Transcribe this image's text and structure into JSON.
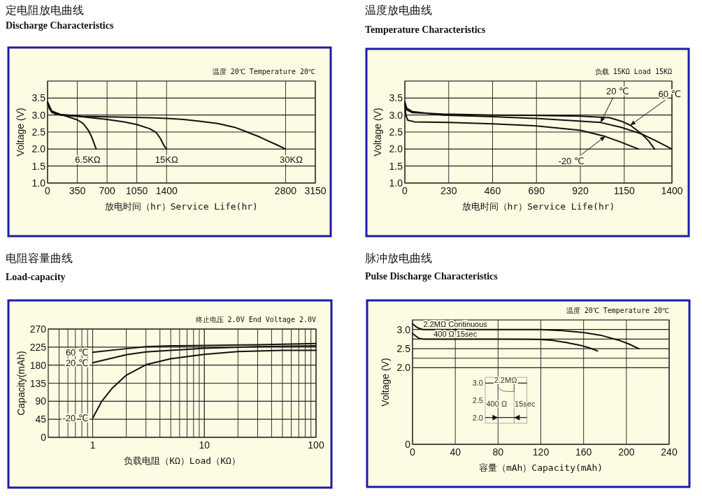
{
  "chart_data": [
    {
      "type": "line",
      "title": "定电阻放电曲线",
      "subtitle": "Discharge Characteristics",
      "xlabel": "放电时间（hr）Service Life(hr)",
      "ylabel": "Voltage (V)",
      "xlim": [
        0,
        3150
      ],
      "xticks": [
        0,
        350,
        700,
        1050,
        1400,
        2800,
        3150
      ],
      "ylim": [
        1,
        4
      ],
      "yticks": [
        {
          "value": 1,
          "label": "1.0"
        },
        1.5,
        {
          "value": 2,
          "label": "2.0"
        },
        2.5,
        {
          "value": 3,
          "label": "3.0"
        },
        3.5
      ],
      "grid": true,
      "annotations": [
        "温度 20℃  Temperature 20℃",
        {
          "text": "6.5KΩ",
          "x": 572,
          "y": 2.0
        },
        {
          "text": "15KΩ",
          "x": 1400,
          "y": 2.0
        },
        {
          "text": "30KΩ",
          "x": 2800,
          "y": 2.0
        }
      ],
      "series": [
        {
          "color": "#111111",
          "x": [
            0,
            20,
            50,
            100,
            200,
            300,
            350,
            420,
            480,
            520,
            550,
            572
          ],
          "values": [
            3.38,
            3.2,
            3.08,
            3.03,
            2.98,
            2.9,
            2.86,
            2.75,
            2.55,
            2.35,
            2.15,
            2.0
          ]
        },
        {
          "color": "#111111",
          "x": [
            0,
            50,
            150,
            400,
            700,
            900,
            1050,
            1200,
            1280,
            1330,
            1370,
            1400
          ],
          "values": [
            3.38,
            3.1,
            3.0,
            2.95,
            2.87,
            2.8,
            2.72,
            2.6,
            2.48,
            2.3,
            2.1,
            2.0
          ]
        },
        {
          "color": "#111111",
          "x": [
            0,
            50,
            150,
            400,
            800,
            1200,
            1400,
            1600,
            1786,
            2000,
            2200,
            2337,
            2500,
            2592,
            2700,
            2800
          ],
          "values": [
            3.38,
            3.12,
            3.02,
            2.96,
            2.94,
            2.92,
            2.9,
            2.87,
            2.82,
            2.75,
            2.64,
            2.51,
            2.35,
            2.24,
            2.12,
            2.0
          ]
        }
      ]
    },
    {
      "type": "line",
      "title": "温度放电曲线",
      "subtitle": "Temperature Characteristics",
      "xlabel": "放电时间（hr）Service Life(hr)",
      "ylabel": "Voltage (V)",
      "xlim": [
        0,
        1400
      ],
      "xticks": [
        0,
        230,
        460,
        690,
        920,
        1150,
        1400
      ],
      "ylim": [
        1,
        4
      ],
      "yticks": [
        {
          "value": 1,
          "label": "1.0"
        },
        1.5,
        {
          "value": 2,
          "label": "2.0"
        },
        2.5,
        {
          "value": 3,
          "label": "3.0"
        },
        3.5
      ],
      "grid": true,
      "annotations": [
        "负载 15KΩ Load 15KΩ",
        {
          "text": "20 ℃",
          "x": 1026,
          "y": 2.78
        },
        {
          "text": "60 ℃",
          "x": 1182,
          "y": 2.7
        },
        {
          "text": "-20 ℃",
          "x": 1050,
          "y": 2.37
        }
      ],
      "series": [
        {
          "color": "#111111",
          "x": [
            0,
            10,
            40,
            200,
            460,
            690,
            920,
            1074,
            1134,
            1182,
            1242,
            1279,
            1309
          ],
          "values": [
            3.38,
            3.15,
            3.07,
            3.03,
            3.0,
            2.99,
            2.97,
            2.92,
            2.82,
            2.7,
            2.44,
            2.23,
            2.0
          ]
        },
        {
          "color": "#111111",
          "x": [
            0,
            10,
            40,
            200,
            460,
            690,
            1026,
            1134,
            1242,
            1320,
            1400
          ],
          "values": [
            3.38,
            3.2,
            3.1,
            3.0,
            2.95,
            2.9,
            2.78,
            2.64,
            2.44,
            2.23,
            2.0
          ]
        },
        {
          "color": "#111111",
          "x": [
            0,
            5,
            15,
            50,
            230,
            460,
            690,
            920,
            1050,
            1134,
            1225
          ],
          "values": [
            3.38,
            3.0,
            2.85,
            2.8,
            2.78,
            2.74,
            2.68,
            2.55,
            2.37,
            2.2,
            2.0
          ]
        }
      ]
    },
    {
      "type": "line",
      "title": "电阻容量曲线",
      "subtitle": "Load-capacity",
      "xlabel": "负载电阻（KΩ）Load（KΩ）",
      "ylabel": "Capacity(mAh)",
      "log": "x",
      "xlim": [
        0.4,
        100
      ],
      "xticks": [
        1,
        10,
        100
      ],
      "ylim": [
        0,
        270
      ],
      "yticks": [
        0,
        45,
        90,
        135,
        180,
        225,
        270
      ],
      "grid": true,
      "annotations": [
        "终止电压 2.0V End Voltage 2.0V",
        {
          "text": "60 ℃",
          "x": 1,
          "y": 212
        },
        {
          "text": "20 ℃",
          "x": 1,
          "y": 186
        },
        {
          "text": "-20 ℃",
          "x": 1,
          "y": 48
        }
      ],
      "series": [
        {
          "color": "#111111",
          "x": [
            1,
            2,
            3,
            5,
            10,
            30,
            100
          ],
          "values": [
            212,
            221,
            226,
            228,
            229,
            231,
            234
          ]
        },
        {
          "color": "#111111",
          "x": [
            1,
            2,
            3,
            10,
            30,
            100
          ],
          "values": [
            186,
            206,
            213,
            222,
            226,
            228
          ]
        },
        {
          "color": "#111111",
          "x": [
            1,
            1.2,
            1.5,
            2,
            3,
            5,
            10,
            20,
            50,
            100
          ],
          "values": [
            48,
            89,
            123,
            155,
            181,
            196,
            207,
            214,
            217,
            217
          ]
        }
      ]
    },
    {
      "type": "line",
      "title": "脉冲放电曲线",
      "subtitle": "Pulse Discharge Characteristics",
      "xlabel": "容量（mAh）Capacity(mAh)",
      "ylabel": "Voltage (V)",
      "xlim": [
        0,
        240
      ],
      "xticks": [
        0,
        40,
        80,
        120,
        160,
        200,
        240
      ],
      "ylim": [
        0,
        3.25
      ],
      "yticks": [
        0,
        {
          "value": 2,
          "label": "2.0"
        },
        {
          "value": 2.25,
          "label": null
        },
        2.5,
        {
          "value": 2.75,
          "label": null
        },
        {
          "value": 3,
          "label": "3.0"
        }
      ],
      "grid": true,
      "annotations": [
        "温度 20℃ Temperature 20℃",
        {
          "text": "2.2MΩ    Continuous",
          "x": 40,
          "y": 3.0
        },
        {
          "text": "400 Ω 15sec",
          "x": 40,
          "y": 2.75
        },
        "2.2MΩ",
        "3.0",
        "2.5",
        "2.0",
        "400 Ω",
        "15sec"
      ],
      "series": [
        {
          "color": "#111111",
          "x": [
            0,
            3,
            6,
            10,
            40,
            80,
            120,
            140,
            160,
            176,
            194,
            202.5,
            211.7
          ],
          "values": [
            3.15,
            3.08,
            3.03,
            3.0,
            3.0,
            3.0,
            3.0,
            2.97,
            2.92,
            2.85,
            2.71,
            2.62,
            2.5
          ]
        },
        {
          "color": "#111111",
          "x": [
            0,
            3,
            6,
            10,
            80,
            120,
            130,
            143.6,
            156.7,
            165.5,
            173
          ],
          "values": [
            2.9,
            2.83,
            2.77,
            2.75,
            2.75,
            2.74,
            2.72,
            2.66,
            2.59,
            2.52,
            2.44
          ]
        }
      ]
    }
  ]
}
